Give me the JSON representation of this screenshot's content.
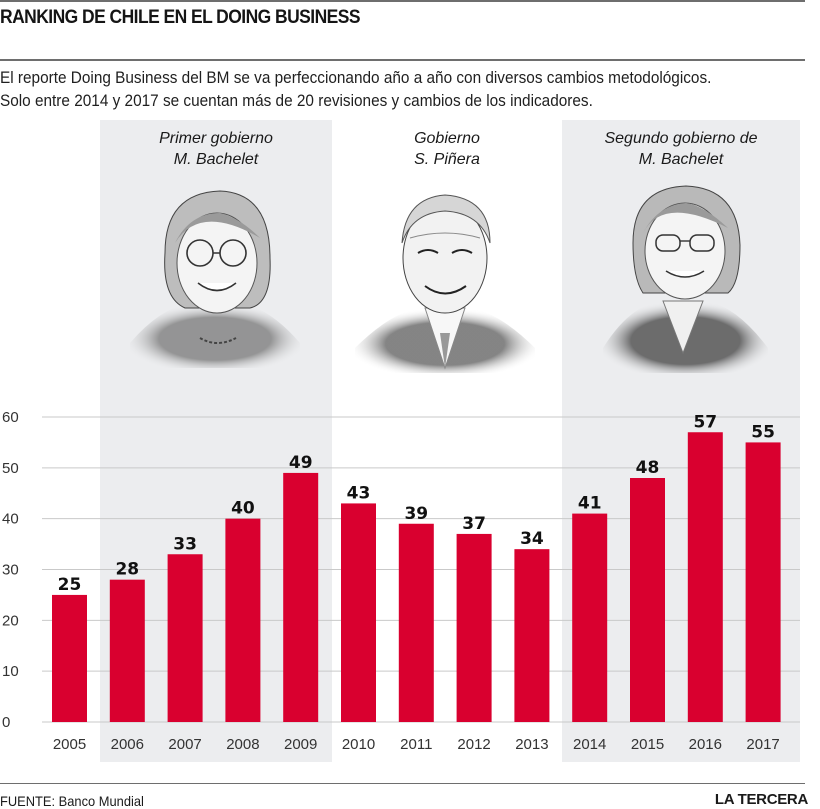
{
  "header": {
    "title": "RANKING DE CHILE EN EL DOING BUSINESS",
    "subtitle_line1": "El reporte Doing Business del BM se va perfeccionando año a año con diversos cambios metodológicos.",
    "subtitle_line2": "Solo entre 2014 y 2017 se cuentan más de 20 revisiones y cambios de los indicadores."
  },
  "periods": [
    {
      "line1": "Primer gobierno",
      "line2": "M. Bachelet",
      "years": [
        "2006",
        "2009"
      ],
      "shaded": true,
      "portrait": "bachelet-portrait-icon"
    },
    {
      "line1": "Gobierno",
      "line2": "S. Piñera",
      "years": [
        "2010",
        "2013"
      ],
      "shaded": false,
      "portrait": "pinera-portrait-icon"
    },
    {
      "line1": "Segundo gobierno de",
      "line2": "M. Bachelet",
      "years": [
        "2014",
        "2017"
      ],
      "shaded": true,
      "portrait": "bachelet-portrait-icon"
    }
  ],
  "colors": {
    "bar": "#d9002f",
    "shade": "#ecedef",
    "grid": "#c9c9c9",
    "text": "#1a1a1a"
  },
  "chart_data": {
    "type": "bar",
    "title": "RANKING DE CHILE EN EL DOING BUSINESS",
    "xlabel": "",
    "ylabel": "",
    "categories": [
      "2005",
      "2006",
      "2007",
      "2008",
      "2009",
      "2010",
      "2011",
      "2012",
      "2013",
      "2014",
      "2015",
      "2016",
      "2017"
    ],
    "values": [
      25,
      28,
      33,
      40,
      49,
      43,
      39,
      37,
      34,
      41,
      48,
      57,
      55
    ],
    "ylim": [
      0,
      60
    ],
    "yticks": [
      0,
      10,
      20,
      30,
      40,
      50,
      60
    ],
    "grid": true,
    "data_labels": true,
    "legend": "none"
  },
  "footer": {
    "source": "FUENTE: Banco Mundial",
    "brand": "LA TERCERA"
  }
}
